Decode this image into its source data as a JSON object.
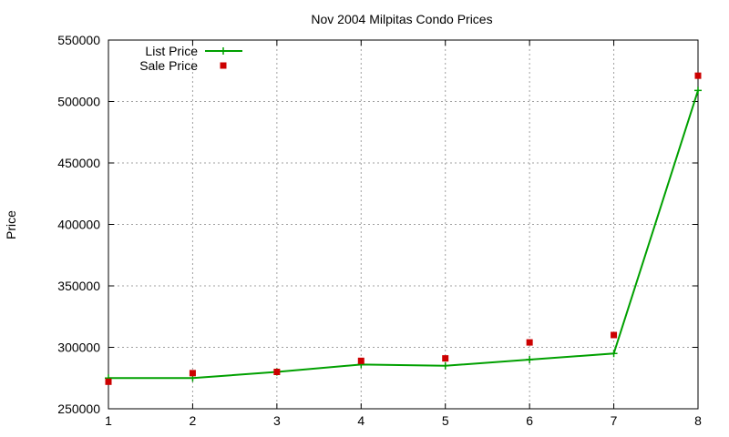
{
  "chart_data": {
    "type": "line",
    "title": "Nov 2004 Milpitas Condo Prices",
    "xlabel": "",
    "ylabel": "Price",
    "xlim": [
      1,
      8
    ],
    "ylim": [
      250000,
      550000
    ],
    "x_ticks": [
      1,
      2,
      3,
      4,
      5,
      6,
      7,
      8
    ],
    "y_ticks": [
      250000,
      300000,
      350000,
      400000,
      450000,
      500000,
      550000
    ],
    "grid": true,
    "legend_position": "top-left",
    "series": [
      {
        "name": "List Price",
        "style": "line-with-plus-markers",
        "color": "#00a000",
        "x": [
          1,
          2,
          3,
          4,
          5,
          6,
          7,
          8
        ],
        "values": [
          275000,
          275000,
          280000,
          286000,
          285000,
          290000,
          295000,
          509000
        ]
      },
      {
        "name": "Sale Price",
        "style": "square-markers",
        "color": "#cc0000",
        "x": [
          1,
          2,
          3,
          4,
          5,
          6,
          7,
          8
        ],
        "values": [
          272000,
          279000,
          280000,
          289000,
          291000,
          304000,
          310000,
          521000
        ]
      }
    ]
  }
}
